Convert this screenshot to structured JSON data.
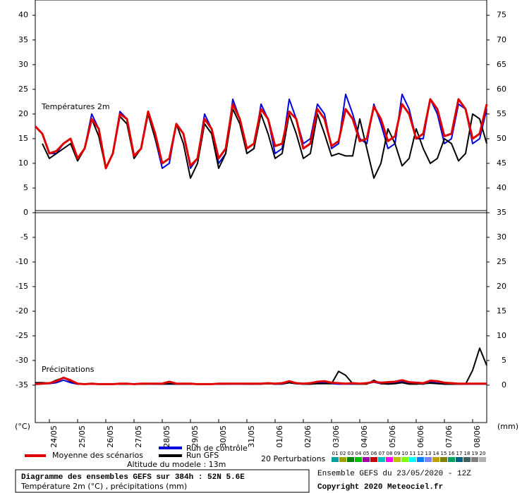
{
  "chart_data": [
    {
      "type": "line",
      "title": "Températures 2m",
      "y_label": "(°C)",
      "ylim": [
        0,
        43.1
      ],
      "yticks": [
        0,
        5,
        10,
        15,
        20,
        25,
        30,
        35,
        40
      ],
      "y2lim": [
        35,
        78.1
      ],
      "y2ticks": [
        40,
        45,
        50,
        55,
        60,
        65,
        70,
        75
      ],
      "series": [
        {
          "name": "Run de contrôle",
          "color": "#0000e0",
          "values": [
            17.5,
            16,
            12,
            12,
            14,
            15,
            10.5,
            13,
            20,
            17,
            9,
            12,
            20.5,
            19,
            11,
            13,
            20,
            15,
            9,
            10,
            18,
            16,
            9,
            11,
            20,
            17,
            10,
            12,
            23,
            19,
            12,
            13,
            22,
            19,
            12,
            13,
            23,
            19,
            14,
            15,
            22,
            20,
            13,
            14,
            24,
            20,
            15,
            14,
            22,
            18,
            13,
            14,
            24,
            21,
            15,
            15,
            23,
            20,
            14,
            15,
            22,
            21,
            14,
            15,
            21
          ]
        },
        {
          "name": "Run GFS",
          "color": "#000000",
          "values": [
            null,
            14,
            11,
            12,
            13,
            14,
            10.5,
            13,
            19,
            15.5,
            9,
            12,
            19.5,
            18,
            11,
            13,
            20,
            15,
            10,
            11,
            18,
            14,
            7,
            10,
            18,
            16,
            9,
            12,
            21,
            18,
            12,
            13,
            20,
            16,
            11,
            12,
            20,
            16,
            11,
            12,
            20,
            16,
            11.5,
            12,
            11.5,
            11.5,
            19,
            13,
            7,
            10,
            17,
            14,
            9.5,
            11,
            17,
            13,
            10,
            11,
            15,
            14,
            10.5,
            12,
            20,
            19,
            14
          ]
        },
        {
          "name": "Moyenne des scénarios",
          "color": "#e00000",
          "values": [
            17.5,
            16,
            12,
            12.5,
            14,
            15,
            11,
            13,
            19,
            17,
            9,
            12,
            20,
            19,
            11.5,
            13,
            20.5,
            16,
            10,
            11,
            18,
            16,
            9.5,
            11,
            19,
            17,
            11,
            13,
            22,
            19,
            13,
            14,
            21,
            19,
            13.5,
            14,
            20.5,
            19,
            13,
            14,
            21,
            19,
            13.5,
            14.5,
            21,
            19,
            14.5,
            15,
            21.5,
            19,
            14.5,
            15.5,
            22,
            20,
            15,
            16,
            23,
            21,
            15.5,
            16,
            23,
            21,
            15,
            16,
            22
          ]
        }
      ]
    },
    {
      "type": "line",
      "title": "Précipitations",
      "y2_label": "(mm)",
      "ylim": [
        -42.6,
        0
      ],
      "yticks": [
        -35,
        -30,
        -25,
        -20,
        -15,
        -10,
        -5
      ],
      "y2lim": [
        -7.6,
        35
      ],
      "y2ticks": [
        0,
        5,
        10,
        15,
        20,
        25,
        30,
        35
      ],
      "xticks": [
        {
          "value": 2,
          "label": "24/05"
        },
        {
          "value": 6,
          "label": "25/05"
        },
        {
          "value": 10,
          "label": "26/05"
        },
        {
          "value": 14,
          "label": "27/05"
        },
        {
          "value": 18,
          "label": "28/05"
        },
        {
          "value": 22,
          "label": "29/05"
        },
        {
          "value": 26,
          "label": "30/05"
        },
        {
          "value": 30,
          "label": "31/05"
        },
        {
          "value": 34,
          "label": "01/06"
        },
        {
          "value": 38,
          "label": "02/06"
        },
        {
          "value": 42,
          "label": "03/06"
        },
        {
          "value": 46,
          "label": "04/06"
        },
        {
          "value": 50,
          "label": "05/06"
        },
        {
          "value": 54,
          "label": "06/06"
        },
        {
          "value": 58,
          "label": "07/06"
        },
        {
          "value": 62,
          "label": "08/06"
        }
      ],
      "series": [
        {
          "color": "#0000e0",
          "axis": "y2",
          "values": [
            0.2,
            0.3,
            0.3,
            0.5,
            1,
            0.5,
            0.2,
            0.2,
            0.2,
            0.2,
            0.2,
            0.2,
            0.2,
            0.2,
            0.2,
            0.2,
            0.3,
            0.2,
            0.2,
            0.2,
            0.2,
            0.2,
            0.2,
            0.2,
            0.2,
            0.2,
            0.2,
            0.2,
            0.2,
            0.2,
            0.2,
            0.2,
            0.3,
            0.3,
            0.2,
            0.2,
            0.5,
            0.3,
            0.2,
            0.2,
            0.4,
            0.6,
            0.3,
            0.2,
            0.2,
            0.2,
            0.2,
            0.3,
            0.6,
            0.3,
            0.3,
            0.5,
            0.8,
            0.3,
            0.3,
            0.2,
            0.6,
            0.4,
            0.2,
            0.2,
            0.2,
            0.2,
            0.2,
            0.2,
            0.2
          ]
        },
        {
          "color": "#000000",
          "axis": "y2",
          "values": [
            0.5,
            0.5,
            0.4,
            1,
            1.5,
            0.8,
            0.2,
            0.2,
            0.3,
            0.2,
            0.2,
            0.2,
            0.2,
            0.2,
            0.2,
            0.2,
            0.2,
            0.2,
            0.2,
            0.3,
            0.2,
            0.2,
            0.2,
            0.2,
            0.2,
            0.2,
            0.2,
            0.2,
            0.3,
            0.3,
            0.2,
            0.2,
            0.2,
            0.3,
            0.2,
            0.3,
            0.5,
            0.3,
            0.2,
            0.2,
            0.3,
            0.3,
            0.3,
            2.8,
            2,
            0.3,
            0.2,
            0.2,
            1,
            0.3,
            0.2,
            0.3,
            0.5,
            0.2,
            0.2,
            0.3,
            0.4,
            0.3,
            0.2,
            0.2,
            0.2,
            0.2,
            3,
            7.5,
            4
          ]
        },
        {
          "color": "#e00000",
          "axis": "y2",
          "values": [
            0.2,
            0.3,
            0.4,
            0.8,
            1.5,
            1,
            0.3,
            0.2,
            0.3,
            0.2,
            0.2,
            0.2,
            0.3,
            0.3,
            0.2,
            0.3,
            0.3,
            0.3,
            0.3,
            0.7,
            0.3,
            0.3,
            0.3,
            0.2,
            0.2,
            0.2,
            0.3,
            0.3,
            0.3,
            0.3,
            0.3,
            0.3,
            0.3,
            0.4,
            0.3,
            0.4,
            0.8,
            0.4,
            0.3,
            0.4,
            0.7,
            0.8,
            0.5,
            0.4,
            0.3,
            0.4,
            0.3,
            0.4,
            0.7,
            0.5,
            0.6,
            0.7,
            1,
            0.6,
            0.5,
            0.4,
            0.9,
            0.8,
            0.5,
            0.4,
            0.3,
            0.3,
            0.3,
            0.3,
            0.3
          ]
        }
      ]
    }
  ],
  "perturbations": {
    "title": "20 Perturbations",
    "items": [
      {
        "label": "01",
        "color": "#00a0a0"
      },
      {
        "label": "02",
        "color": "#a0a000"
      },
      {
        "label": "03",
        "color": "#008000"
      },
      {
        "label": "04",
        "color": "#00c000"
      },
      {
        "label": "05",
        "color": "#a000a0"
      },
      {
        "label": "06",
        "color": "#c00000"
      },
      {
        "label": "07",
        "color": "#00c0c0"
      },
      {
        "label": "08",
        "color": "#ff00ff"
      },
      {
        "label": "09",
        "color": "#c0c000"
      },
      {
        "label": "10",
        "color": "#80ff00"
      },
      {
        "label": "11",
        "color": "#00ffff"
      },
      {
        "label": "12",
        "color": "#0080ff"
      },
      {
        "label": "13",
        "color": "#8080ff"
      },
      {
        "label": "14",
        "color": "#c0a000"
      },
      {
        "label": "15",
        "color": "#808000"
      },
      {
        "label": "16",
        "color": "#00a060"
      },
      {
        "label": "17",
        "color": "#006080"
      },
      {
        "label": "18",
        "color": "#406060"
      },
      {
        "label": "19",
        "color": "#808080"
      },
      {
        "label": "20",
        "color": "#b0b0b0"
      }
    ]
  },
  "footer": {
    "altitude": "Altitude du modele : 13m",
    "title": "Diagramme des ensembles GEFS sur 384h : 52N 5.6E",
    "subtitle": "Température 2m (°C) , précipitations (mm)",
    "run": "Ensemble GEFS du 23/05/2020 - 12Z",
    "copyright": "Copyright 2020 Meteociel.fr"
  }
}
